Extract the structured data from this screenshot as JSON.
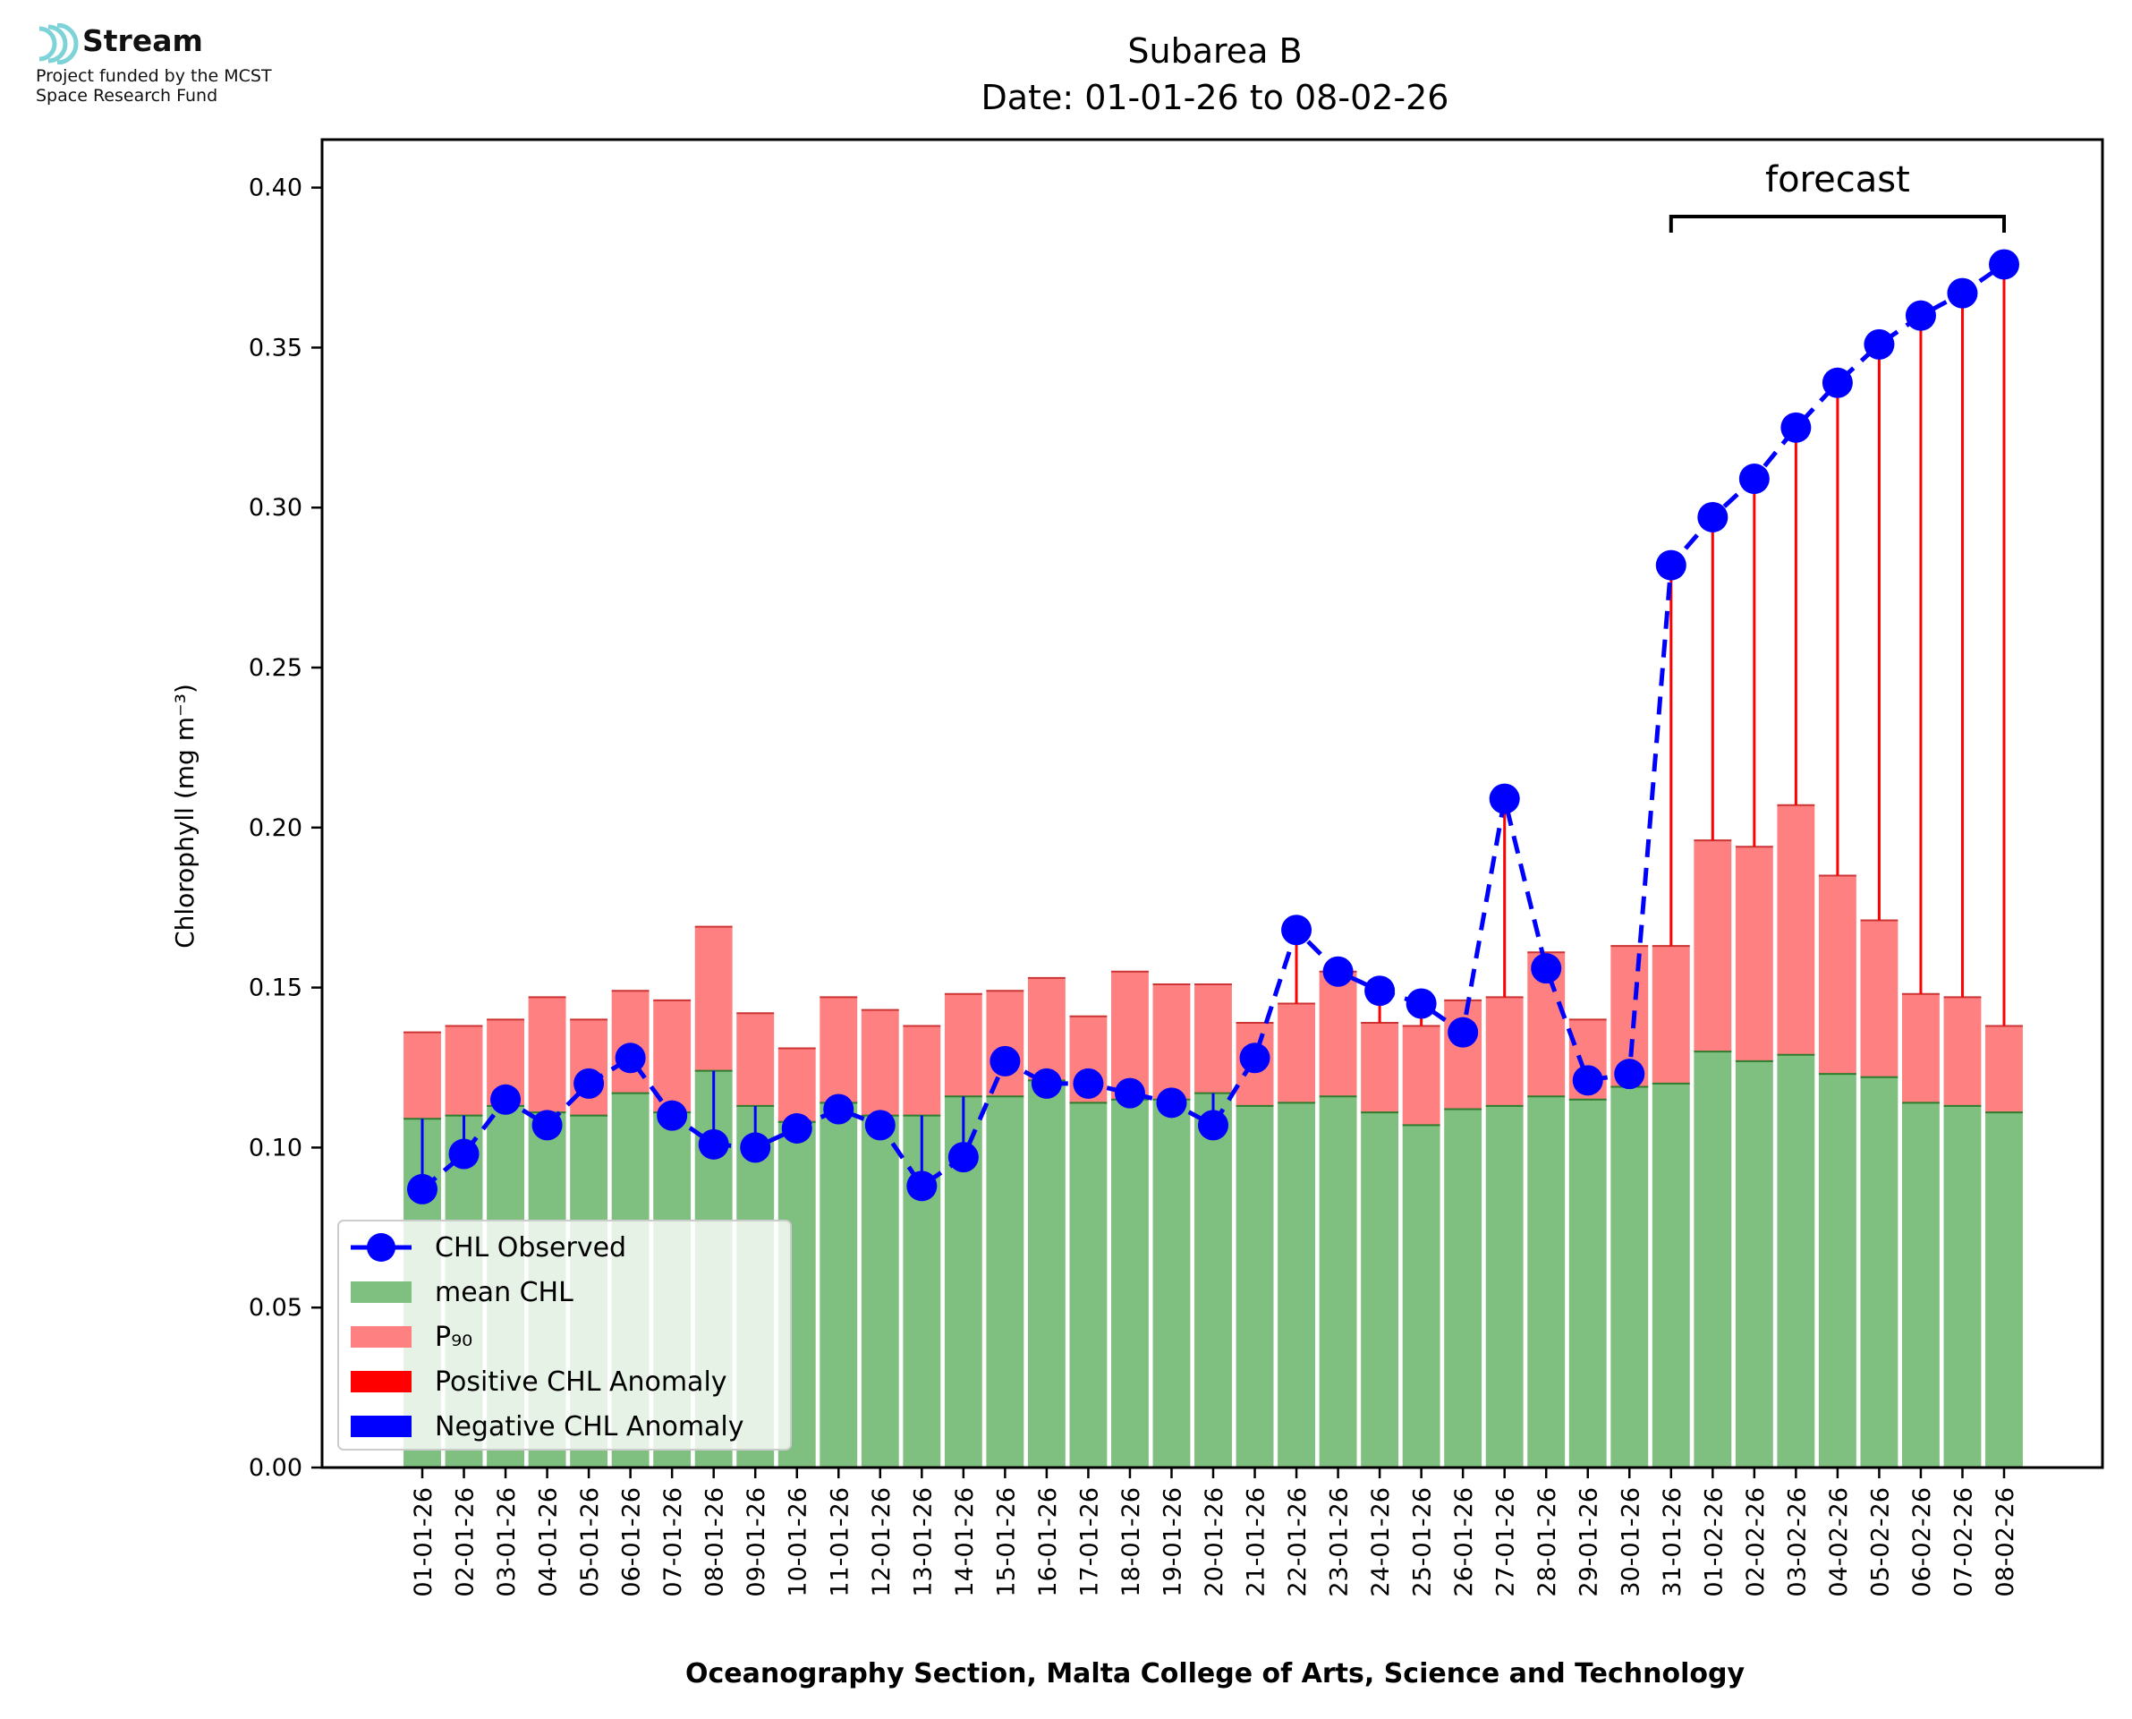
{
  "logo": {
    "name": "Stream",
    "subtitle_line1": "Project funded by the MCST",
    "subtitle_line2": "Space Research Fund"
  },
  "chart_data": {
    "type": "bar",
    "title": "Subarea B",
    "subtitle": "Date: 01-01-26 to 08-02-26",
    "xlabel": "Oceanography Section, Malta College of Arts, Science and Technology",
    "ylabel": "Chlorophyll (mg m⁻³)",
    "ylim": [
      0,
      0.415
    ],
    "yticks": [
      "0.00",
      "0.05",
      "0.10",
      "0.15",
      "0.20",
      "0.25",
      "0.30",
      "0.35",
      "0.40"
    ],
    "categories": [
      "01-01-26",
      "02-01-26",
      "03-01-26",
      "04-01-26",
      "05-01-26",
      "06-01-26",
      "07-01-26",
      "08-01-26",
      "09-01-26",
      "10-01-26",
      "11-01-26",
      "12-01-26",
      "13-01-26",
      "14-01-26",
      "15-01-26",
      "16-01-26",
      "17-01-26",
      "18-01-26",
      "19-01-26",
      "20-01-26",
      "21-01-26",
      "22-01-26",
      "23-01-26",
      "24-01-26",
      "25-01-26",
      "26-01-26",
      "27-01-26",
      "28-01-26",
      "29-01-26",
      "30-01-26",
      "31-01-26",
      "01-02-26",
      "02-02-26",
      "03-02-26",
      "04-02-26",
      "05-02-26",
      "06-02-26",
      "07-02-26",
      "08-02-26"
    ],
    "series": [
      {
        "name": "CHL Observed",
        "color": "#0000ff",
        "style": "dashed line with circle markers",
        "values": [
          0.087,
          0.098,
          0.115,
          0.107,
          0.12,
          0.128,
          0.11,
          0.101,
          0.1,
          0.106,
          0.112,
          0.107,
          0.088,
          0.097,
          0.127,
          0.12,
          0.12,
          0.117,
          0.114,
          0.107,
          0.128,
          0.168,
          0.155,
          0.149,
          0.145,
          0.136,
          0.209,
          0.156,
          0.121,
          0.123,
          0.282,
          0.297,
          0.309,
          0.325,
          0.339,
          0.351,
          0.36,
          0.367,
          0.376
        ]
      },
      {
        "name": "mean CHL",
        "color": "#7fbf7f",
        "values": [
          0.109,
          0.11,
          0.113,
          0.111,
          0.11,
          0.117,
          0.111,
          0.124,
          0.113,
          0.108,
          0.114,
          0.11,
          0.11,
          0.116,
          0.116,
          0.121,
          0.114,
          0.115,
          0.115,
          0.117,
          0.113,
          0.114,
          0.116,
          0.111,
          0.107,
          0.112,
          0.113,
          0.116,
          0.115,
          0.119,
          0.12,
          0.13,
          0.127,
          0.129,
          0.123,
          0.122,
          0.114,
          0.113,
          0.111
        ]
      },
      {
        "name": "P₉₀",
        "color": "#ff8080",
        "values": [
          0.136,
          0.138,
          0.14,
          0.147,
          0.14,
          0.149,
          0.146,
          0.169,
          0.142,
          0.131,
          0.147,
          0.143,
          0.138,
          0.148,
          0.149,
          0.153,
          0.141,
          0.155,
          0.151,
          0.151,
          0.139,
          0.145,
          0.155,
          0.139,
          0.138,
          0.146,
          0.147,
          0.161,
          0.14,
          0.163,
          0.163,
          0.196,
          0.194,
          0.207,
          0.185,
          0.171,
          0.148,
          0.147,
          0.138
        ]
      }
    ],
    "legend": {
      "placement": "lower-left",
      "entries": [
        {
          "label": "CHL Observed",
          "color": "#0000ff",
          "kind": "line-marker"
        },
        {
          "label": "mean CHL",
          "color": "#7fbf7f",
          "kind": "patch"
        },
        {
          "label": "P₉₀",
          "color": "#ff8080",
          "kind": "patch"
        },
        {
          "label": "Positive CHL Anomaly",
          "color": "#ff0000",
          "kind": "patch"
        },
        {
          "label": "Negative CHL Anomaly",
          "color": "#0000ff",
          "kind": "patch"
        }
      ]
    },
    "annotation": {
      "text": "forecast",
      "from": "31-01-26",
      "to": "08-02-26"
    },
    "anomaly_colors": {
      "positive": "#ff0000",
      "negative": "#0000ff"
    }
  }
}
